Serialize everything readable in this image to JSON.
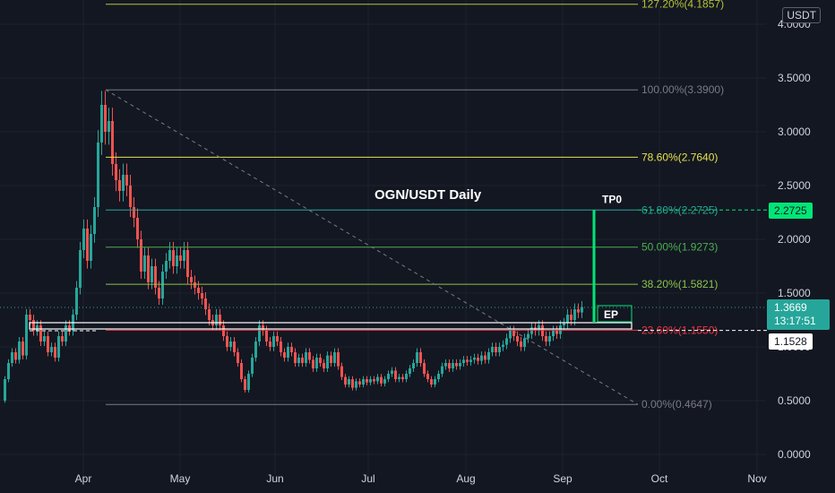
{
  "chart_data": {
    "type": "candlestick",
    "title": "OGN/USDT Daily",
    "currency": "USDT",
    "y_ticks": [
      "0.0000",
      "0.5000",
      "1.0000",
      "1.5000",
      "2.0000",
      "2.5000",
      "3.0000",
      "3.5000",
      "4.0000"
    ],
    "ylim": [
      0.0,
      4.2
    ],
    "x_ticks": [
      "Apr",
      "May",
      "Jun",
      "Jul",
      "Aug",
      "Sep",
      "Oct",
      "Nov"
    ],
    "fib_levels": [
      {
        "label": "127.20%(4.1857)",
        "value": 4.1857,
        "color": "#b5c236"
      },
      {
        "label": "100.00%(3.3900)",
        "value": 3.39,
        "color": "#787b86"
      },
      {
        "label": "78.60%(2.7640)",
        "value": 2.764,
        "color": "#e6e34c"
      },
      {
        "label": "61.80%(2.2725)",
        "value": 2.2725,
        "color": "#26a69a"
      },
      {
        "label": "50.00%(1.9273)",
        "value": 1.9273,
        "color": "#4caf50"
      },
      {
        "label": "38.20%(1.5821)",
        "value": 1.5821,
        "color": "#8bc34a"
      },
      {
        "label": "23.60%(1.1550)",
        "value": 1.155,
        "color": "#f23645"
      },
      {
        "label": "0.00%(0.4647)",
        "value": 0.4647,
        "color": "#787b86"
      }
    ],
    "annotations": {
      "tp_label": "TP0",
      "ep_label": "EP",
      "tp_value": 2.2725,
      "current_price": "1.3669",
      "countdown": "13:17:51",
      "entry_price": "1.1528",
      "tp_price": "2.2725"
    },
    "price_path": [
      [
        0,
        0.5
      ],
      [
        4,
        0.7
      ],
      [
        8,
        0.85
      ],
      [
        12,
        0.95
      ],
      [
        16,
        0.88
      ],
      [
        20,
        1.05
      ],
      [
        24,
        0.92
      ],
      [
        28,
        1.3
      ],
      [
        32,
        1.25
      ],
      [
        36,
        1.15
      ],
      [
        40,
        1.2
      ],
      [
        44,
        1.05
      ],
      [
        48,
        1.1
      ],
      [
        52,
        0.95
      ],
      [
        56,
        1.0
      ],
      [
        60,
        0.9
      ],
      [
        64,
        1.1
      ],
      [
        68,
        1.05
      ],
      [
        72,
        1.2
      ],
      [
        76,
        1.15
      ],
      [
        80,
        1.3
      ],
      [
        84,
        1.55
      ],
      [
        88,
        1.9
      ],
      [
        92,
        2.1
      ],
      [
        96,
        1.8
      ],
      [
        100,
        2.05
      ],
      [
        104,
        2.3
      ],
      [
        108,
        2.9
      ],
      [
        112,
        3.25
      ],
      [
        116,
        3.0
      ],
      [
        120,
        3.1
      ],
      [
        124,
        2.7
      ],
      [
        128,
        2.55
      ],
      [
        132,
        2.45
      ],
      [
        136,
        2.6
      ],
      [
        140,
        2.5
      ],
      [
        144,
        2.3
      ],
      [
        148,
        2.2
      ],
      [
        152,
        2.0
      ],
      [
        156,
        1.7
      ],
      [
        160,
        1.85
      ],
      [
        164,
        1.6
      ],
      [
        168,
        1.75
      ],
      [
        172,
        1.55
      ],
      [
        176,
        1.45
      ],
      [
        180,
        1.7
      ],
      [
        184,
        1.8
      ],
      [
        188,
        1.9
      ],
      [
        192,
        1.75
      ],
      [
        196,
        1.85
      ],
      [
        200,
        1.8
      ],
      [
        204,
        1.9
      ],
      [
        208,
        1.65
      ],
      [
        212,
        1.6
      ],
      [
        216,
        1.55
      ],
      [
        220,
        1.5
      ],
      [
        224,
        1.45
      ],
      [
        228,
        1.35
      ],
      [
        232,
        1.25
      ],
      [
        236,
        1.2
      ],
      [
        240,
        1.3
      ],
      [
        244,
        1.2
      ],
      [
        248,
        1.1
      ],
      [
        252,
        1.0
      ],
      [
        256,
        1.05
      ],
      [
        260,
        0.95
      ],
      [
        264,
        0.85
      ],
      [
        268,
        0.7
      ],
      [
        272,
        0.6
      ],
      [
        276,
        0.75
      ],
      [
        280,
        0.9
      ],
      [
        284,
        1.05
      ],
      [
        288,
        1.2
      ],
      [
        292,
        1.15
      ],
      [
        296,
        1.05
      ],
      [
        300,
        1.0
      ],
      [
        304,
        1.1
      ],
      [
        308,
        1.05
      ],
      [
        312,
        0.95
      ],
      [
        316,
        0.9
      ],
      [
        320,
        1.0
      ],
      [
        324,
        0.95
      ],
      [
        328,
        0.85
      ],
      [
        332,
        0.9
      ],
      [
        336,
        0.85
      ],
      [
        340,
        0.95
      ],
      [
        344,
        0.88
      ],
      [
        348,
        0.8
      ],
      [
        352,
        0.9
      ],
      [
        356,
        0.85
      ],
      [
        360,
        0.8
      ],
      [
        364,
        0.92
      ],
      [
        368,
        0.85
      ],
      [
        372,
        0.95
      ],
      [
        376,
        0.82
      ],
      [
        380,
        0.72
      ],
      [
        384,
        0.65
      ],
      [
        388,
        0.7
      ],
      [
        392,
        0.62
      ],
      [
        396,
        0.68
      ],
      [
        400,
        0.65
      ],
      [
        404,
        0.7
      ],
      [
        408,
        0.67
      ],
      [
        412,
        0.7
      ],
      [
        416,
        0.68
      ],
      [
        420,
        0.72
      ],
      [
        424,
        0.66
      ],
      [
        428,
        0.7
      ],
      [
        432,
        0.75
      ],
      [
        436,
        0.78
      ],
      [
        440,
        0.7
      ],
      [
        444,
        0.72
      ],
      [
        448,
        0.7
      ],
      [
        452,
        0.75
      ],
      [
        456,
        0.8
      ],
      [
        460,
        0.85
      ],
      [
        464,
        0.95
      ],
      [
        468,
        0.85
      ],
      [
        472,
        0.75
      ],
      [
        476,
        0.7
      ],
      [
        480,
        0.65
      ],
      [
        484,
        0.7
      ],
      [
        488,
        0.75
      ],
      [
        492,
        0.82
      ],
      [
        496,
        0.85
      ],
      [
        500,
        0.8
      ],
      [
        504,
        0.85
      ],
      [
        508,
        0.82
      ],
      [
        512,
        0.85
      ],
      [
        516,
        0.88
      ],
      [
        520,
        0.86
      ],
      [
        524,
        0.88
      ],
      [
        528,
        0.9
      ],
      [
        532,
        0.87
      ],
      [
        536,
        0.92
      ],
      [
        540,
        0.88
      ],
      [
        544,
        0.95
      ],
      [
        548,
        1.0
      ],
      [
        552,
        0.95
      ],
      [
        556,
        1.0
      ],
      [
        560,
        1.02
      ],
      [
        564,
        1.08
      ],
      [
        568,
        1.15
      ],
      [
        572,
        1.1
      ],
      [
        576,
        1.05
      ],
      [
        580,
        1.0
      ],
      [
        584,
        1.08
      ],
      [
        588,
        1.12
      ],
      [
        592,
        1.18
      ],
      [
        596,
        1.15
      ],
      [
        600,
        1.2
      ],
      [
        604,
        1.1
      ],
      [
        608,
        1.05
      ],
      [
        612,
        1.1
      ],
      [
        616,
        1.15
      ],
      [
        620,
        1.12
      ],
      [
        624,
        1.2
      ],
      [
        628,
        1.22
      ],
      [
        632,
        1.3
      ],
      [
        636,
        1.25
      ],
      [
        640,
        1.35
      ],
      [
        644,
        1.32
      ],
      [
        648,
        1.37
      ]
    ]
  }
}
